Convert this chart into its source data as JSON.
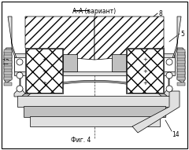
{
  "title": "А-А (вариант)",
  "caption": "Фиг. 4",
  "bg_color": "#ffffff",
  "line_color": "#000000",
  "gray_light": "#e0e0e0",
  "gray_mid": "#c0c0c0",
  "gray_dark": "#a0a0a0"
}
